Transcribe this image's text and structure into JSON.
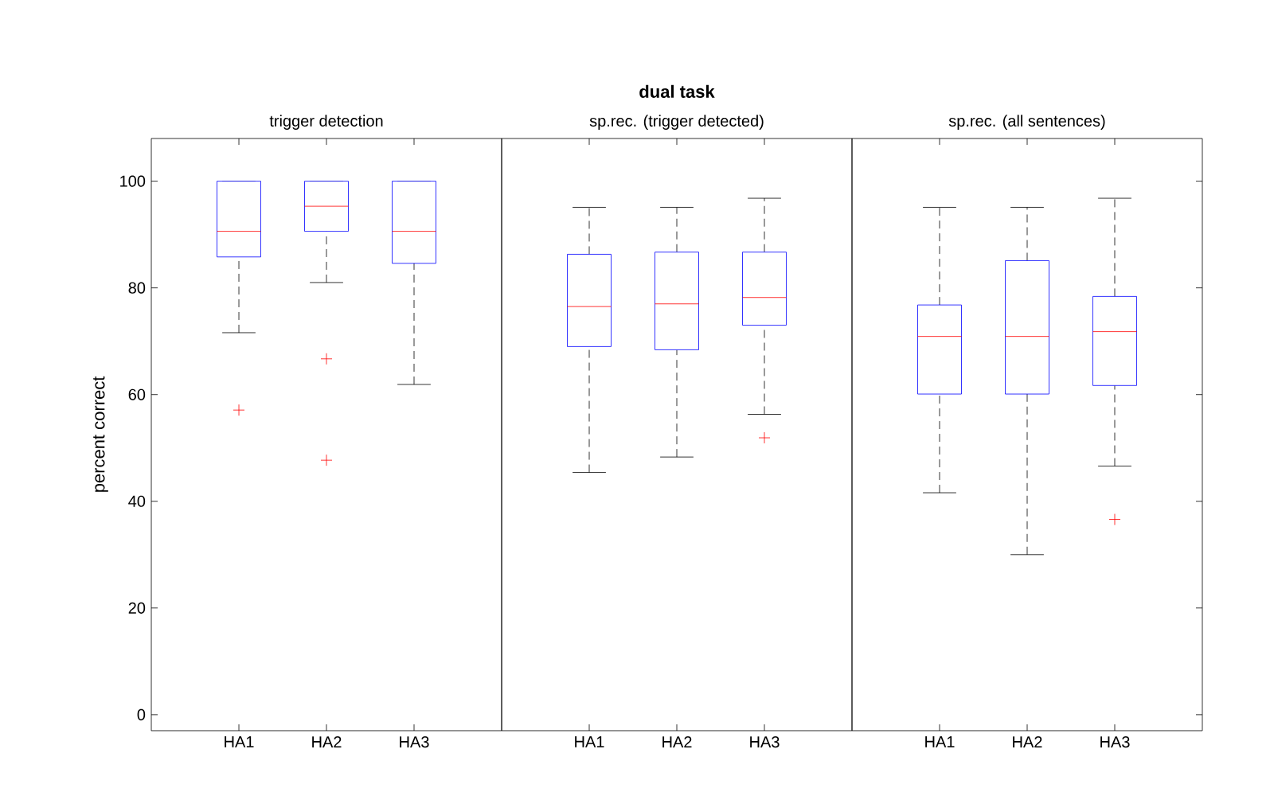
{
  "chart_data": [
    {
      "type": "box",
      "title": "trigger detection",
      "ylabel": "percent correct",
      "categories": [
        "HA1",
        "HA2",
        "HA3"
      ],
      "ylim": [
        -3,
        108
      ],
      "yticks": [
        0,
        20,
        40,
        60,
        80,
        100
      ],
      "boxes": [
        {
          "low": 71.6,
          "q1": 85.8,
          "median": 90.6,
          "q3": 100,
          "high": 100,
          "outliers": [
            57.1
          ]
        },
        {
          "low": 81.0,
          "q1": 90.6,
          "median": 95.3,
          "q3": 100,
          "high": 100,
          "outliers": [
            66.7,
            47.7
          ]
        },
        {
          "low": 61.9,
          "q1": 84.6,
          "median": 90.6,
          "q3": 100,
          "high": 100
        }
      ]
    },
    {
      "type": "box",
      "title": "sp.rec. (trigger detected)",
      "annotations": [
        "dual task"
      ],
      "categories": [
        "HA1",
        "HA2",
        "HA3"
      ],
      "ylim": [
        -3,
        108
      ],
      "yticks": [
        0,
        20,
        40,
        60,
        80,
        100
      ],
      "tick_labels": "x",
      "boxes": [
        {
          "low": 45.4,
          "q1": 69.0,
          "median": 76.5,
          "q3": 86.3,
          "high": 95.1
        },
        {
          "low": 48.3,
          "q1": 68.4,
          "median": 77.0,
          "q3": 86.7,
          "high": 95.1
        },
        {
          "low": 56.3,
          "q1": 73.0,
          "median": 78.2,
          "q3": 86.7,
          "high": 96.8,
          "outliers": [
            51.9
          ]
        }
      ]
    },
    {
      "type": "box",
      "title": "sp.rec. (all sentences)",
      "categories": [
        "HA1",
        "HA2",
        "HA3"
      ],
      "ylim": [
        -3,
        108
      ],
      "yticks": [
        0,
        20,
        40,
        60,
        80,
        100
      ],
      "tick_labels": "x",
      "boxes": [
        {
          "low": 41.6,
          "q1": 60.1,
          "median": 70.9,
          "q3": 76.8,
          "high": 95.1
        },
        {
          "low": 30.0,
          "q1": 60.1,
          "median": 70.9,
          "q3": 85.1,
          "high": 95.1
        },
        {
          "low": 46.6,
          "q1": 61.7,
          "median": 71.8,
          "q3": 78.4,
          "high": 96.8,
          "outliers": [
            36.6
          ]
        }
      ]
    }
  ]
}
